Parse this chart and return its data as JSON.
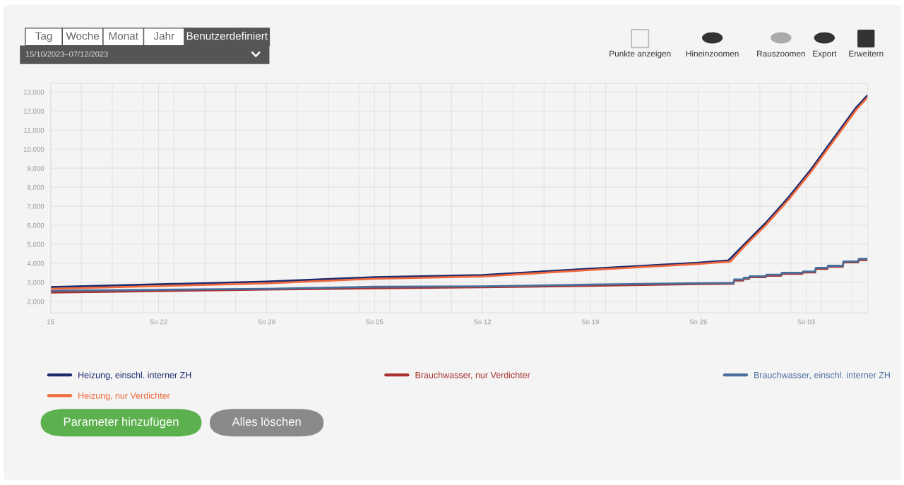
{
  "chart_data": {
    "type": "line",
    "xlim": [
      "2023-10-15",
      "2023-12-07"
    ],
    "xticks": [
      {
        "value": "2023-10-15",
        "label": "15"
      },
      {
        "value": "2023-10-22",
        "label": "So 22"
      },
      {
        "value": "2023-10-29",
        "label": "So 29"
      },
      {
        "value": "2023-11-05",
        "label": "So 05"
      },
      {
        "value": "2023-11-12",
        "label": "So 12"
      },
      {
        "value": "2023-11-19",
        "label": "So 19"
      },
      {
        "value": "2023-11-26",
        "label": "So 26"
      },
      {
        "value": "2023-12-03",
        "label": "So 03"
      },
      {
        "value": "2023-10-17",
        "label": null
      },
      {
        "value": "2023-10-19",
        "label": null
      },
      {
        "value": "2023-10-21",
        "label": null
      },
      {
        "value": "2023-10-23",
        "label": null
      },
      {
        "value": "2023-10-25",
        "label": null
      },
      {
        "value": "2023-10-27",
        "label": null
      },
      {
        "value": "2023-10-31",
        "label": null
      },
      {
        "value": "2023-11-02",
        "label": null
      },
      {
        "value": "2023-11-04",
        "label": null
      },
      {
        "value": "2023-11-06",
        "label": null
      },
      {
        "value": "2023-11-08",
        "label": null
      },
      {
        "value": "2023-11-10",
        "label": null
      },
      {
        "value": "2023-11-14",
        "label": null
      },
      {
        "value": "2023-11-16",
        "label": null
      },
      {
        "value": "2023-11-18",
        "label": null
      },
      {
        "value": "2023-11-20",
        "label": null
      },
      {
        "value": "2023-11-22",
        "label": null
      },
      {
        "value": "2023-11-24",
        "label": null
      },
      {
        "value": "2023-11-28",
        "label": null
      },
      {
        "value": "2023-11-30",
        "label": null
      },
      {
        "value": "2023-12-02",
        "label": null
      },
      {
        "value": "2023-12-04",
        "label": null
      },
      {
        "value": "2023-12-06",
        "label": null
      }
    ],
    "ylim": [
      1400,
      13450
    ],
    "yticks": [
      {
        "value": 2000,
        "label": "2,000"
      },
      {
        "value": 3000,
        "label": "3,000"
      },
      {
        "value": 4000,
        "label": "4,000"
      },
      {
        "value": 5000,
        "label": "5,000"
      },
      {
        "value": 6000,
        "label": "6,000"
      },
      {
        "value": 7000,
        "label": "7,000"
      },
      {
        "value": 8000,
        "label": "8,000"
      },
      {
        "value": 9000,
        "label": "9,000"
      },
      {
        "value": 10000,
        "label": "10,000"
      },
      {
        "value": 11000,
        "label": "11,000"
      },
      {
        "value": 12000,
        "label": "12,000"
      },
      {
        "value": 13000,
        "label": "13,000"
      }
    ],
    "grid": true,
    "legend": "bottom",
    "series": [
      {
        "name": "Heizung, einschl. interner ZH",
        "color": "#1c2a6e",
        "x": [
          "2023-10-15",
          "2023-10-29",
          "2023-11-05",
          "2023-11-12",
          "2023-11-19",
          "2023-11-26",
          "2023-11-27T23:00",
          "2023-11-28T22:00",
          "2023-11-30T09:00",
          "2023-12-01T20:00",
          "2023-12-03T07:00",
          "2023-12-04T18:00",
          "2023-12-06T05:00",
          "2023-12-06T23:00"
        ],
        "values": [
          2750,
          3040,
          3270,
          3380,
          3720,
          4030,
          4150,
          4940,
          6120,
          7440,
          8910,
          10530,
          12150,
          12810
        ]
      },
      {
        "name": "Brauchwasser, nur Verdichter",
        "color": "#a8322d",
        "x": [
          "2023-10-15",
          "2023-10-29",
          "2023-11-05",
          "2023-11-12",
          "2023-11-19",
          "2023-11-26",
          "2023-11-28T07:00",
          "2023-11-28T08:00",
          "2023-11-28T22:00",
          "2023-11-28T23:00",
          "2023-11-29T07:00",
          "2023-11-29T08:00",
          "2023-11-30T09:00",
          "2023-11-30T10:00",
          "2023-12-01T09:00",
          "2023-12-01T10:00",
          "2023-12-02T18:00",
          "2023-12-02T19:00",
          "2023-12-03T14:00",
          "2023-12-03T15:00",
          "2023-12-04T09:00",
          "2023-12-04T10:00",
          "2023-12-05T09:00",
          "2023-12-05T10:00",
          "2023-12-06T09:00",
          "2023-12-06T10:00",
          "2023-12-06T23:00"
        ],
        "values": [
          2470,
          2620,
          2690,
          2740,
          2820,
          2910,
          2930,
          3100,
          3100,
          3190,
          3190,
          3270,
          3270,
          3350,
          3350,
          3450,
          3450,
          3520,
          3520,
          3710,
          3710,
          3820,
          3820,
          4050,
          4050,
          4170,
          4170
        ]
      },
      {
        "name": "Brauchwasser, einschl. interner ZH",
        "color": "#4a6f9c",
        "x": [
          "2023-10-15",
          "2023-10-29",
          "2023-11-05",
          "2023-11-12",
          "2023-11-19",
          "2023-11-26",
          "2023-11-28T07:00",
          "2023-11-28T08:00",
          "2023-11-28T22:00",
          "2023-11-28T23:00",
          "2023-11-29T07:00",
          "2023-11-29T08:00",
          "2023-11-30T09:00",
          "2023-11-30T10:00",
          "2023-12-01T09:00",
          "2023-12-01T10:00",
          "2023-12-02T18:00",
          "2023-12-02T19:00",
          "2023-12-03T14:00",
          "2023-12-03T15:00",
          "2023-12-04T09:00",
          "2023-12-04T10:00",
          "2023-12-05T09:00",
          "2023-12-05T10:00",
          "2023-12-06T09:00",
          "2023-12-06T10:00",
          "2023-12-06T23:00"
        ],
        "values": [
          2560,
          2660,
          2770,
          2790,
          2880,
          2960,
          2970,
          3150,
          3150,
          3240,
          3240,
          3320,
          3320,
          3400,
          3400,
          3500,
          3500,
          3570,
          3570,
          3760,
          3760,
          3870,
          3870,
          4100,
          4100,
          4240,
          4240
        ]
      },
      {
        "name": "Heizung, nur Verdichter",
        "color": "#f0683c",
        "x": [
          "2023-10-15",
          "2023-10-29",
          "2023-11-05",
          "2023-11-12",
          "2023-11-19",
          "2023-11-26",
          "2023-11-28T02:00",
          "2023-11-28T23:00",
          "2023-11-30T10:00",
          "2023-12-01T21:00",
          "2023-12-03T08:00",
          "2023-12-04T19:00",
          "2023-12-06T06:00",
          "2023-12-06T23:00"
        ],
        "values": [
          2660,
          2950,
          3190,
          3310,
          3650,
          3970,
          4090,
          4860,
          6040,
          7360,
          8830,
          10450,
          12070,
          12700
        ]
      }
    ],
    "annotations": [
      "Tag",
      "Woche",
      "Monat",
      "Jahr",
      "Benutzerdefiniert",
      "15/10/2023–07/12/2023",
      "Punkte anzeigen",
      "Hineinzoomen",
      "Rauszoomen",
      "Export",
      "Erweitern",
      "Parameter hinzufügen",
      "Alles löschen"
    ]
  }
}
